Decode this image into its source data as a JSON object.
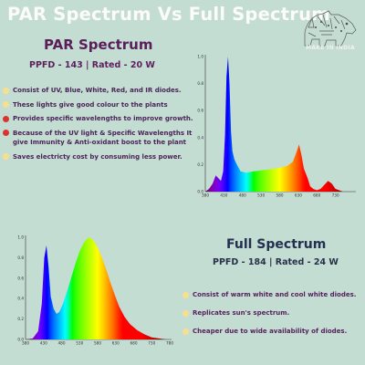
{
  "title": "PAR Spectrum Vs Full Spectrum",
  "logo": {
    "text": "MAKE IN INDIA",
    "icon": "lion-icon"
  },
  "par": {
    "heading": "PAR Spectrum",
    "subtitle": "PPFD - 143 | Rated - 20 W",
    "bullets": [
      {
        "text": "Consist of UV, Blue, White, Red, and IR diodes.",
        "dot_color": "#f7e08c"
      },
      {
        "text": "These lights give good colour to the plants",
        "dot_color": "#f7e08c"
      },
      {
        "text": "Provides specific wavelengths to improve growth.",
        "dot_color": "#d8352f"
      },
      {
        "text": "Because of the UV light & Specific Wavelengths It give Immunity & Anti-oxidant boost to the plant",
        "dot_color": "#d8352f"
      },
      {
        "text": "Saves electricty cost by consuming less power.",
        "dot_color": "#f7e08c"
      }
    ]
  },
  "full": {
    "heading": "Full Spectrum",
    "subtitle": "PPFD - 184 | Rated - 24 W",
    "bullets": [
      {
        "text": "Consist of warm white and cool white diodes.",
        "dot_color": "#f7e08c"
      },
      {
        "text": "Replicates sun's spectrum.",
        "dot_color": "#f7e08c"
      },
      {
        "text": "Cheaper due to wide availability of diodes.",
        "dot_color": "#f7e08c"
      }
    ]
  },
  "chart_data": [
    {
      "type": "area",
      "name": "PAR Spectrum",
      "x_ticks": [
        380,
        430,
        480,
        530,
        580,
        630,
        680,
        730
      ],
      "y_ticks": [
        "0.0",
        "0.2",
        "0.4",
        "0.6",
        "0.8",
        "1.0"
      ],
      "xlim": [
        380,
        780
      ],
      "ylim": [
        0,
        1.0
      ],
      "grid": false,
      "x": [
        380,
        390,
        400,
        408,
        415,
        422,
        428,
        433,
        437,
        441,
        445,
        449,
        453,
        458,
        465,
        475,
        490,
        510,
        540,
        570,
        600,
        615,
        625,
        632,
        638,
        645,
        655,
        662,
        670,
        680,
        690,
        700,
        710,
        720,
        730,
        740,
        750,
        760,
        770,
        780
      ],
      "y": [
        0.0,
        0.02,
        0.06,
        0.12,
        0.1,
        0.08,
        0.15,
        0.42,
        0.85,
        1.0,
        0.8,
        0.45,
        0.3,
        0.24,
        0.2,
        0.15,
        0.14,
        0.15,
        0.16,
        0.17,
        0.19,
        0.22,
        0.29,
        0.35,
        0.28,
        0.17,
        0.1,
        0.04,
        0.02,
        0.01,
        0.02,
        0.05,
        0.08,
        0.06,
        0.02,
        0.01,
        0.0,
        0.0,
        0.0,
        0.0
      ]
    },
    {
      "type": "area",
      "name": "Full Spectrum",
      "x_ticks": [
        380,
        430,
        480,
        530,
        580,
        630,
        680,
        730,
        780
      ],
      "y_ticks": [
        "0.0",
        "0.2",
        "0.4",
        "0.6",
        "0.8",
        "1.0"
      ],
      "xlim": [
        380,
        780
      ],
      "ylim": [
        0,
        1.0
      ],
      "grid": false,
      "x": [
        380,
        400,
        415,
        425,
        432,
        438,
        444,
        450,
        458,
        466,
        474,
        484,
        496,
        508,
        520,
        532,
        544,
        556,
        568,
        580,
        592,
        604,
        616,
        628,
        640,
        655,
        670,
        690,
        710,
        730,
        750,
        770,
        780
      ],
      "y": [
        0.0,
        0.01,
        0.08,
        0.35,
        0.8,
        0.92,
        0.7,
        0.42,
        0.3,
        0.25,
        0.27,
        0.35,
        0.48,
        0.62,
        0.76,
        0.88,
        0.96,
        1.0,
        0.97,
        0.9,
        0.8,
        0.68,
        0.55,
        0.43,
        0.32,
        0.22,
        0.15,
        0.09,
        0.05,
        0.02,
        0.01,
        0.0,
        0.0
      ]
    }
  ]
}
